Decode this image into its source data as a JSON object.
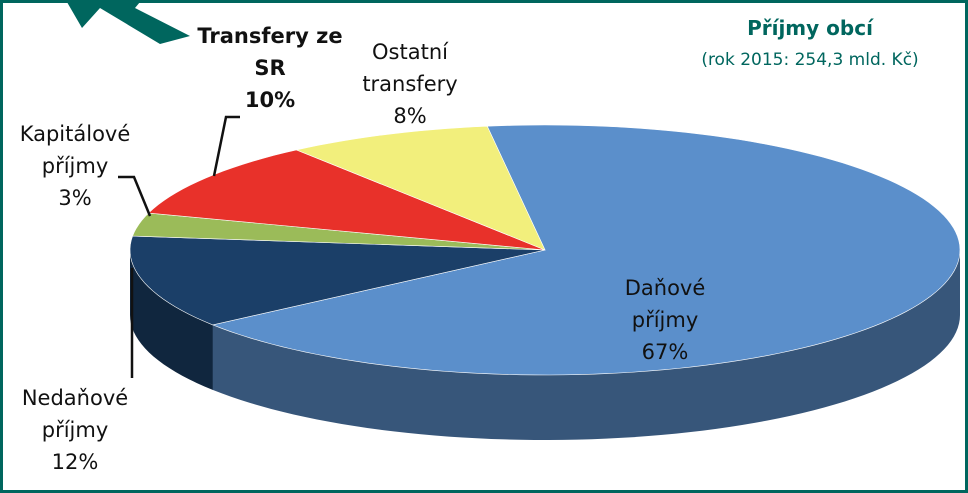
{
  "chart_data": {
    "type": "pie",
    "title": "Příjmy obcí",
    "subtitle": "(rok 2015: 254,3 mld. Kč)",
    "categories": [
      "Daňové příjmy",
      "Nedaňové příjmy",
      "Kapitálové příjmy",
      "Transfery ze SR",
      "Ostatní transfery"
    ],
    "values": [
      67,
      12,
      3,
      10,
      8
    ],
    "value_labels": [
      "67%",
      "12%",
      "3%",
      "10%",
      "8%"
    ],
    "colors": [
      "#5b8fcb",
      "#1b3f68",
      "#9bbb59",
      "#e8312a",
      "#f2ef7c"
    ]
  }
}
